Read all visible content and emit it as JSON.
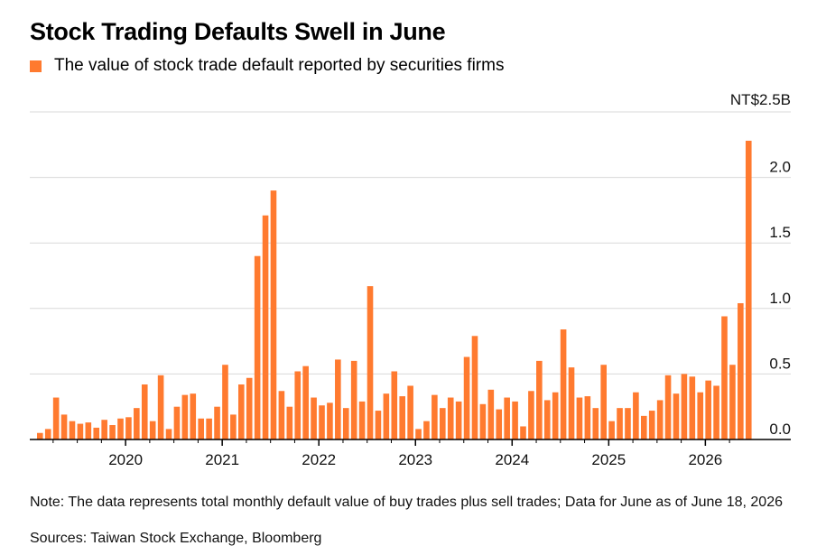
{
  "header": {
    "title": "Stock Trading Defaults Swell in June",
    "legend_label": "The value of stock trade default reported by securities firms"
  },
  "footer": {
    "note": "Note: The data represents total monthly default value of buy trades plus sell trades; Data for June as of June 18, 2026",
    "sources": "Sources: Taiwan Stock Exchange, Bloomberg"
  },
  "colors": {
    "bar": "#ff7a2f",
    "grid": "#d9d9d9",
    "axis": "#000000"
  },
  "chart_data": {
    "type": "bar",
    "unit_label": "NT$2.5B",
    "ylim": [
      0,
      2.5
    ],
    "yticks": [
      {
        "value": 0,
        "label": "0.0"
      },
      {
        "value": 0.5,
        "label": "0.5"
      },
      {
        "value": 1.0,
        "label": "1.0"
      },
      {
        "value": 1.5,
        "label": "1.5"
      },
      {
        "value": 2.0,
        "label": "2.0"
      },
      {
        "value": 2.5,
        "label": "NT$2.5B"
      }
    ],
    "grid": true,
    "start_month": "2019-02",
    "xticks": [
      "2020",
      "2021",
      "2022",
      "2023",
      "2024",
      "2025",
      "2026"
    ],
    "series": [
      {
        "values": [
          0.05,
          0.08,
          0.32,
          0.19,
          0.14,
          0.12,
          0.13,
          0.09,
          0.15,
          0.11,
          0.16,
          0.17,
          0.24,
          0.42,
          0.14,
          0.49,
          0.08,
          0.25,
          0.34,
          0.35,
          0.16,
          0.16,
          0.25,
          0.57,
          0.19,
          0.42,
          0.47,
          1.4,
          1.71,
          1.9,
          0.37,
          0.25,
          0.52,
          0.56,
          0.32,
          0.26,
          0.28,
          0.61,
          0.24,
          0.6,
          0.29,
          1.17,
          0.22,
          0.35,
          0.52,
          0.33,
          0.41,
          0.08,
          0.14,
          0.34,
          0.24,
          0.32,
          0.29,
          0.63,
          0.79,
          0.27,
          0.38,
          0.23,
          0.32,
          0.29,
          0.1,
          0.37,
          0.6,
          0.3,
          0.36,
          0.84,
          0.55,
          0.32,
          0.33,
          0.24,
          0.57,
          0.14,
          0.24,
          0.24,
          0.36,
          0.18,
          0.22,
          0.3,
          0.49,
          0.35,
          0.5,
          0.48,
          0.36,
          0.45,
          0.41,
          0.94,
          0.57,
          1.04,
          2.28
        ]
      }
    ]
  }
}
